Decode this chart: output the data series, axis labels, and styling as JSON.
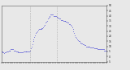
{
  "background_color": "#e8e8e8",
  "plot_background": "#e8e8e8",
  "line_color": "#0000cc",
  "line_style": "None",
  "line_width": 0.5,
  "marker": ".",
  "marker_size": 0.8,
  "vline_color": "#999999",
  "vline_style": "dotted",
  "ylim": [
    -5,
    50
  ],
  "yticks": [
    -5,
    0,
    5,
    10,
    15,
    20,
    25,
    30,
    35,
    40,
    45,
    50
  ],
  "ytick_labels": [
    "-5",
    "0",
    "5",
    "10",
    "15",
    "20",
    "25",
    "30",
    "35",
    "40",
    "45",
    "50"
  ],
  "vline_positions": [
    0.27,
    0.53
  ],
  "num_xticks": 48,
  "x_values": [
    0,
    1,
    2,
    3,
    4,
    5,
    6,
    7,
    8,
    9,
    10,
    11,
    12,
    13,
    14,
    15,
    16,
    17,
    18,
    19,
    20,
    21,
    22,
    23,
    24,
    25,
    26,
    27,
    28,
    29,
    30,
    31,
    32,
    33,
    34,
    35,
    36,
    37,
    38,
    39,
    40,
    41,
    42,
    43,
    44,
    45,
    46,
    47,
    48,
    49,
    50,
    51,
    52,
    53,
    54,
    55,
    56,
    57,
    58,
    59,
    60,
    61,
    62,
    63,
    64,
    65,
    66,
    67,
    68,
    69,
    70,
    71,
    72,
    73,
    74,
    75,
    76,
    77,
    78,
    79,
    80,
    81,
    82,
    83,
    84,
    85,
    86,
    87,
    88,
    89,
    90,
    91,
    92,
    93,
    94,
    95,
    96,
    97,
    98,
    99,
    100,
    101,
    102,
    103,
    104,
    105,
    106,
    107,
    108,
    109,
    110,
    111,
    112,
    113,
    114,
    115,
    116,
    117,
    118,
    119,
    120,
    121,
    122,
    123,
    124,
    125,
    126,
    127,
    128,
    129,
    130,
    131,
    132,
    133,
    134,
    135,
    136,
    137,
    138,
    139,
    140,
    141,
    142,
    143
  ],
  "y_values": [
    5,
    5,
    4,
    4,
    3,
    4,
    4,
    5,
    5,
    5,
    6,
    6,
    6,
    7,
    7,
    7,
    7,
    6,
    6,
    6,
    5,
    5,
    5,
    4,
    4,
    4,
    4,
    4,
    4,
    4,
    5,
    5,
    5,
    5,
    5,
    5,
    5,
    5,
    5,
    6,
    8,
    10,
    12,
    15,
    17,
    19,
    21,
    23,
    24,
    25,
    26,
    27,
    27,
    27,
    27,
    28,
    28,
    29,
    30,
    31,
    33,
    34,
    35,
    37,
    38,
    39,
    40,
    41,
    41,
    41,
    41,
    40,
    40,
    40,
    40,
    39,
    39,
    38,
    38,
    37,
    37,
    36,
    36,
    36,
    35,
    35,
    35,
    35,
    34,
    34,
    33,
    33,
    32,
    32,
    31,
    30,
    29,
    27,
    25,
    23,
    21,
    19,
    18,
    17,
    16,
    15,
    15,
    14,
    14,
    13,
    13,
    12,
    12,
    11,
    11,
    10,
    10,
    10,
    10,
    10,
    10,
    9,
    9,
    9,
    9,
    9,
    8,
    8,
    8,
    8,
    8,
    7,
    7,
    7,
    7,
    7,
    7,
    7,
    7,
    7,
    6,
    6,
    6,
    6
  ]
}
